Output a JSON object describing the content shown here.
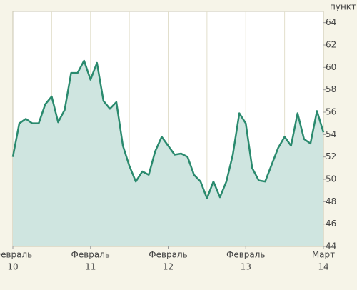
{
  "chart_data": {
    "type": "area",
    "y_axis_label": "пункты",
    "x": [
      0,
      0.083,
      0.167,
      0.25,
      0.333,
      0.417,
      0.5,
      0.583,
      0.667,
      0.75,
      0.833,
      0.917,
      1,
      1.083,
      1.167,
      1.25,
      1.333,
      1.417,
      1.5,
      1.583,
      1.667,
      1.75,
      1.833,
      1.917,
      2,
      2.083,
      2.167,
      2.25,
      2.333,
      2.417,
      2.5,
      2.583,
      2.667,
      2.75,
      2.833,
      2.917,
      3,
      3.083,
      3.167,
      3.25,
      3.333,
      3.417,
      3.5,
      3.583,
      3.667,
      3.75,
      3.833,
      3.917,
      4
    ],
    "values": [
      52,
      55,
      55.4,
      55,
      55,
      56.7,
      57.4,
      55.1,
      56.2,
      59.5,
      59.5,
      60.6,
      58.9,
      60.4,
      57,
      56.3,
      56.9,
      53,
      51.2,
      49.8,
      50.7,
      50.4,
      52.5,
      53.8,
      53,
      52.2,
      52.3,
      52,
      50.4,
      49.8,
      48.3,
      49.8,
      48.4,
      49.8,
      52.2,
      55.9,
      55,
      51,
      49.9,
      49.8,
      51.3,
      52.8,
      53.8,
      53,
      55.9,
      53.6,
      53.2,
      56.1,
      54.2
    ],
    "color": "#2a8a6e",
    "fill": "#cfe5e0",
    "xlim": [
      0,
      4
    ],
    "xticks": [
      {
        "value": 0,
        "label": "Февраль",
        "day": "10"
      },
      {
        "value": 1,
        "label": "Февраль",
        "day": "11"
      },
      {
        "value": 2,
        "label": "Февраль",
        "day": "12"
      },
      {
        "value": 3,
        "label": "Февраль",
        "day": "13"
      },
      {
        "value": 4,
        "label": "Март",
        "day": "14"
      }
    ],
    "xgrid": [
      0.5,
      1,
      1.5,
      2,
      2.5,
      3,
      3.5
    ],
    "ylim": [
      44,
      65
    ],
    "yticks": [
      44,
      46,
      48,
      50,
      52,
      54,
      56,
      58,
      60,
      62,
      64
    ]
  }
}
